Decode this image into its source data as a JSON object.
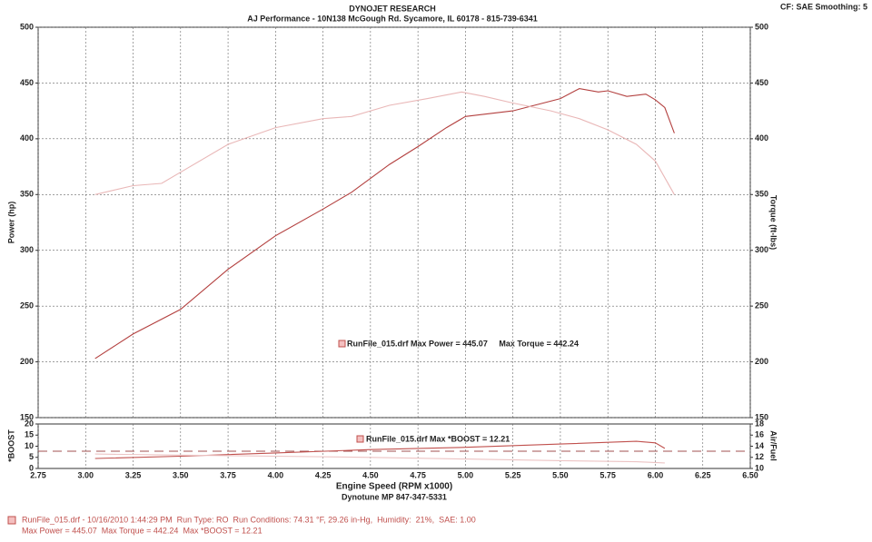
{
  "header": {
    "title": "DYNOJET RESEARCH",
    "address": "AJ Performance - 10N138 McGough Rd. Sycamore, IL 60178 - 815-739-6341",
    "settings": "CF: SAE  Smoothing: 5"
  },
  "chart_data": [
    {
      "type": "line",
      "ylabel": "Power (hp)",
      "y2label": "Torque (ft-lbs)",
      "annotation": "RunFile_015.drf Max Power = 445.07     Max Torque = 442.24",
      "xlim": [
        2.75,
        6.5
      ],
      "xticks": [
        2.75,
        {
          "value": 3,
          "label": "3.00"
        },
        3.25,
        {
          "value": 3.5,
          "label": "3.50"
        },
        3.75,
        {
          "value": 4,
          "label": "4.00"
        },
        4.25,
        {
          "value": 4.5,
          "label": "4.50"
        },
        4.75,
        {
          "value": 5,
          "label": "5.00"
        },
        5.25,
        {
          "value": 5.5,
          "label": "5.50"
        },
        5.75,
        {
          "value": 6,
          "label": "6.00"
        },
        6.25,
        {
          "value": 6.5,
          "label": "6.50"
        }
      ],
      "ylim": [
        150,
        500
      ],
      "yticks": [
        150,
        200,
        250,
        300,
        350,
        400,
        450,
        500
      ],
      "y2lim": [
        150,
        500
      ],
      "y2ticks": [
        150,
        200,
        250,
        300,
        350,
        400,
        450,
        500
      ],
      "grid": true,
      "series": [
        {
          "color": "#b3403f",
          "axis": "y",
          "x": [
            3.05,
            3.25,
            3.5,
            3.75,
            4.0,
            4.25,
            4.4,
            4.6,
            4.75,
            4.9,
            5.0,
            5.25,
            5.5,
            5.6,
            5.7,
            5.75,
            5.85,
            5.95,
            6.0,
            6.05,
            6.1
          ],
          "values": [
            203,
            225,
            247,
            283,
            313,
            337,
            352,
            377,
            393,
            410,
            420,
            425,
            436,
            445,
            442,
            443,
            438,
            440,
            435,
            428,
            405
          ]
        },
        {
          "color": "#e9b7b7",
          "axis": "y2",
          "x": [
            3.05,
            3.25,
            3.4,
            3.5,
            3.75,
            4.0,
            4.25,
            4.4,
            4.6,
            4.8,
            4.98,
            5.1,
            5.25,
            5.45,
            5.6,
            5.75,
            5.9,
            6.0,
            6.1
          ],
          "values": [
            350,
            358,
            360,
            370,
            395,
            410,
            418,
            420,
            430,
            436,
            442,
            438,
            432,
            425,
            418,
            408,
            395,
            380,
            350
          ]
        }
      ]
    },
    {
      "type": "line",
      "ylabel": "*BOOST",
      "y2label": "Air/Fuel",
      "xlabel": "Engine Speed (RPM x1000)",
      "xnote": "Dynotune MP 847-347-5331",
      "annotation": "RunFile_015.drf Max *BOOST = 12.21",
      "ylim": [
        0,
        20
      ],
      "yticks": [
        0,
        5,
        10,
        15,
        20
      ],
      "y2lim": [
        10,
        18
      ],
      "y2ticks": [
        10,
        12,
        14,
        16,
        18
      ],
      "hline": 13.1,
      "hline_axis": "y2",
      "series": [
        {
          "color": "#c0504d",
          "axis": "y",
          "x": [
            3.05,
            3.5,
            4.0,
            4.5,
            5.0,
            5.5,
            5.9,
            6.0,
            6.05
          ],
          "values": [
            4.5,
            5.5,
            7,
            8.5,
            9.5,
            11,
            12.21,
            11.5,
            9
          ]
        },
        {
          "color": "#ecc4c4",
          "axis": "y2",
          "x": [
            3.05,
            3.5,
            4.0,
            4.5,
            5.0,
            5.5,
            5.9,
            6.05
          ],
          "values": [
            12.6,
            12.4,
            12.2,
            12.0,
            11.7,
            11.4,
            11.2,
            11.0
          ]
        }
      ]
    }
  ],
  "footer": {
    "line1": "RunFile_015.drf - 10/16/2010 1:44:29 PM  Run Type: RO  Run Conditions: 74.31 °F, 29.26 in-Hg,  Humidity:  21%,  SAE: 1.00",
    "line2": "Max Power = 445.07  Max Torque = 442.24  Max *BOOST = 12.21"
  }
}
